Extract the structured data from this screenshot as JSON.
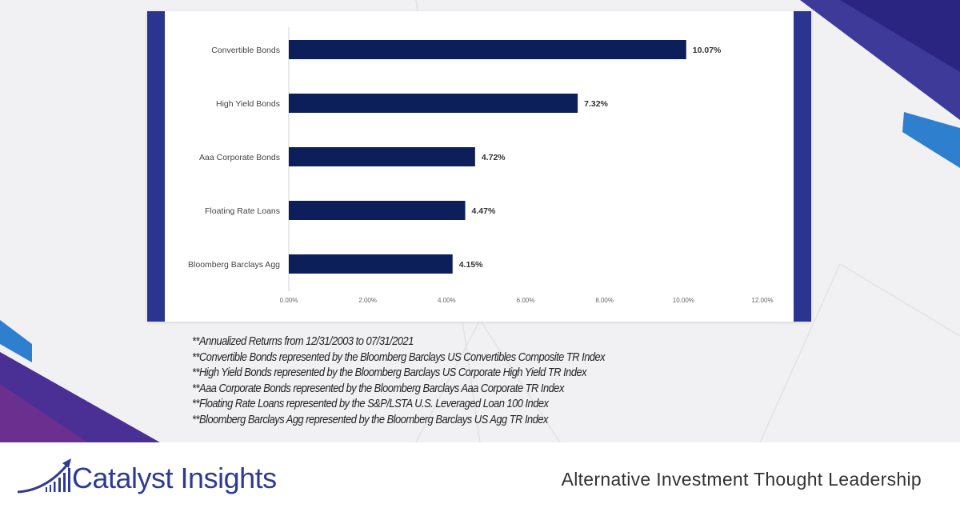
{
  "chart_data": {
    "type": "bar",
    "orientation": "horizontal",
    "categories": [
      "Convertible Bonds",
      "High Yield Bonds",
      "Aaa Corporate Bonds",
      "Floating Rate Loans",
      "Bloomberg Barclays Agg"
    ],
    "values": [
      10.07,
      7.32,
      4.72,
      4.47,
      4.15
    ],
    "data_labels": [
      "10.07%",
      "7.32%",
      "4.72%",
      "4.47%",
      "4.15%"
    ],
    "xticks": [
      "0.00%",
      "2.00%",
      "4.00%",
      "6.00%",
      "8.00%",
      "10.00%",
      "12.00%"
    ],
    "xlim": [
      0,
      12
    ],
    "grid": false,
    "bar_color": "#0c1f5b",
    "title": "",
    "xlabel": "",
    "ylabel": ""
  },
  "notes": [
    "**Annualized Returns from 12/31/2003 to 07/31/2021",
    "**Convertible Bonds represented by the Bloomberg Barclays US Convertibles Composite TR Index",
    "**High Yield Bonds represented by the Bloomberg Barclays US Corporate High Yield TR Index",
    "**Aaa Corporate Bonds represented by the Bloomberg Barclays Aaa Corporate TR Index",
    "**Floating Rate Loans represented by the S&P/LSTA U.S. Leveraged Loan 100 Index",
    "**Bloomberg Barclays Agg represented by the Bloomberg Barclays US Agg TR Index"
  ],
  "footer": {
    "brand": "Catalyst Insights",
    "tagline": "Alternative Investment Thought Leadership",
    "brand_color": "#2e3a94"
  }
}
